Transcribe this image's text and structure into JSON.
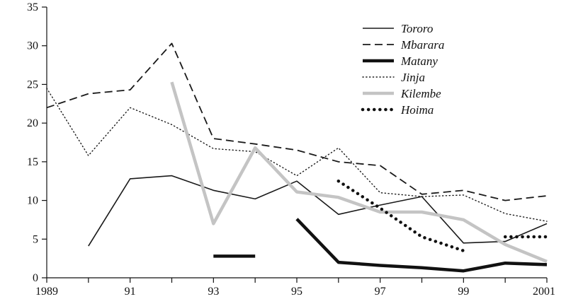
{
  "chart_data": {
    "type": "line",
    "title": "",
    "xlabel": "",
    "ylabel": "",
    "xlim": [
      1989,
      2001
    ],
    "ylim": [
      0,
      35
    ],
    "yticks": [
      0,
      5,
      10,
      15,
      20,
      25,
      30,
      35
    ],
    "xticks": [
      1989,
      1990,
      1991,
      1992,
      1993,
      1994,
      1995,
      1996,
      1997,
      1998,
      1999,
      2000,
      2001
    ],
    "xtick_labels": [
      "1989",
      "",
      "91",
      "",
      "93",
      "",
      "95",
      "",
      "97",
      "",
      "99",
      "",
      "2001"
    ],
    "grid": false,
    "legend_position": "top-right",
    "series": [
      {
        "name": "Tororo",
        "color": "#1a1a1a",
        "style": "solid-thin",
        "x": [
          1990,
          1991,
          1992,
          1993,
          1994,
          1995,
          1996,
          1997,
          1998,
          1999,
          2000,
          2001
        ],
        "y": [
          4.1,
          12.8,
          13.2,
          11.3,
          10.2,
          12.5,
          8.2,
          9.4,
          10.5,
          4.5,
          4.7,
          7.0
        ]
      },
      {
        "name": "Mbarara",
        "color": "#1a1a1a",
        "style": "dashed",
        "x": [
          1989,
          1990,
          1991,
          1992,
          1993,
          1994,
          1995,
          1996,
          1997,
          1998,
          1999,
          2000,
          2001
        ],
        "y": [
          22.0,
          23.8,
          24.3,
          30.3,
          18.0,
          17.3,
          16.5,
          15.0,
          14.5,
          10.8,
          11.3,
          10.0,
          10.6
        ]
      },
      {
        "name": "Matany",
        "color": "#111111",
        "style": "solid-thick",
        "segments": [
          {
            "x": [
              1993,
              1994
            ],
            "y": [
              2.8,
              2.8
            ]
          },
          {
            "x": [
              1995,
              1996,
              1997,
              1998,
              1999,
              2000,
              2001
            ],
            "y": [
              7.6,
              2.0,
              1.6,
              1.3,
              0.9,
              1.9,
              1.7
            ]
          }
        ]
      },
      {
        "name": "Jinja",
        "color": "#1a1a1a",
        "style": "dotted-fine",
        "x": [
          1989,
          1990,
          1991,
          1992,
          1993,
          1994,
          1995,
          1996,
          1997,
          1998,
          1999,
          2000,
          2001
        ],
        "y": [
          24.5,
          15.8,
          22.0,
          19.8,
          16.7,
          16.3,
          13.2,
          16.8,
          11.0,
          10.5,
          10.7,
          8.3,
          7.3
        ]
      },
      {
        "name": "Kilembe",
        "color": "#c4c4c4",
        "style": "solid-thick",
        "x": [
          1992,
          1993,
          1994,
          1995,
          1996,
          1997,
          1998,
          1999,
          2000,
          2001
        ],
        "y": [
          25.3,
          7.0,
          16.8,
          11.1,
          10.4,
          8.5,
          8.5,
          7.5,
          4.3,
          2.1
        ]
      },
      {
        "name": "Hoima",
        "color": "#111111",
        "style": "dotted-bold",
        "segments": [
          {
            "x": [
              1996,
              1997,
              1998,
              1999
            ],
            "y": [
              12.5,
              9.0,
              5.3,
              3.5
            ]
          },
          {
            "x": [
              2000,
              2001
            ],
            "y": [
              5.3,
              5.3
            ]
          }
        ]
      }
    ]
  }
}
